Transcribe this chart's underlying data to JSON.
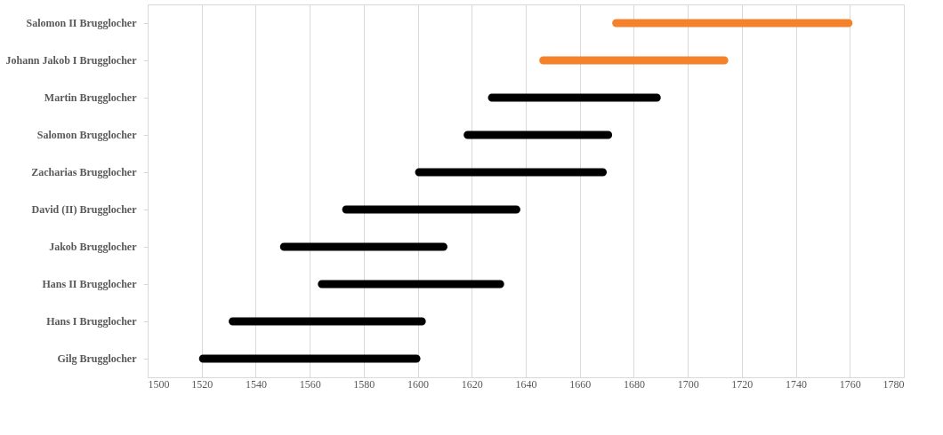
{
  "chart_data": {
    "type": "bar",
    "orientation": "horizontal",
    "categories": [
      "Salomon II Brugglocher",
      "Johann Jakob I Brugglocher",
      "Martin Brugglocher",
      "Salomon Brugglocher",
      "Zacharias Brugglocher",
      "David (II) Brugglocher",
      "Jakob Brugglocher",
      "Hans II Brugglocher",
      "Hans I Brugglocher",
      "Gilg Brugglocher"
    ],
    "base": [
      1672,
      1645,
      1626,
      1617,
      1599,
      1572,
      1549,
      1563,
      1530,
      1519
    ],
    "values": [
      89,
      70,
      64,
      55,
      71,
      66,
      62,
      69,
      73,
      82
    ],
    "colors": [
      "#f4812c",
      "#f4812c",
      "#000000",
      "#000000",
      "#000000",
      "#000000",
      "#000000",
      "#000000",
      "#000000",
      "#000000"
    ],
    "xlim": [
      1500,
      1780
    ],
    "xticks": [
      1500,
      1520,
      1540,
      1560,
      1580,
      1600,
      1620,
      1640,
      1660,
      1680,
      1700,
      1720,
      1740,
      1760,
      1780
    ],
    "grid": "x"
  }
}
